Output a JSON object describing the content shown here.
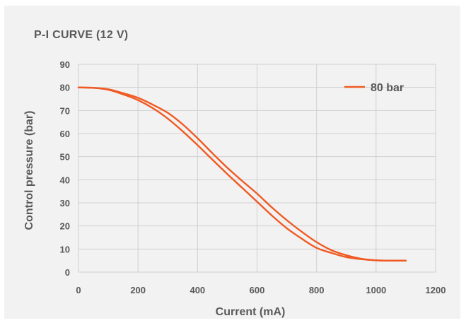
{
  "chart_data": {
    "type": "line",
    "title": "P-I CURVE (12 V)",
    "xlabel": "Current (mA)",
    "ylabel": "Control pressure (bar)",
    "xlim": [
      0,
      1200
    ],
    "ylim": [
      0,
      90
    ],
    "xticks": [
      0,
      200,
      400,
      600,
      800,
      1000,
      1200
    ],
    "yticks": [
      0,
      10,
      20,
      30,
      40,
      50,
      60,
      70,
      80,
      90
    ],
    "grid": true,
    "legend": "top-right",
    "series": [
      {
        "name": "80 bar",
        "color": "#f05a22",
        "x": [
          0,
          50,
          100,
          150,
          200,
          250,
          300,
          350,
          400,
          450,
          500,
          550,
          600,
          650,
          700,
          750,
          800,
          850,
          900,
          950,
          1000,
          1050,
          1100
        ],
        "y_up": [
          80,
          79.8,
          79,
          77,
          74.5,
          71,
          66.5,
          61,
          55,
          48.7,
          42.5,
          36.5,
          30.5,
          24.5,
          19,
          14.5,
          10.5,
          8.3,
          6.5,
          5.6,
          5.1,
          5,
          5
        ],
        "y_down": [
          80,
          79.8,
          79.2,
          77.5,
          75.5,
          72.5,
          69,
          64,
          58,
          51.5,
          45.2,
          39.5,
          34,
          28,
          22.5,
          17.5,
          13,
          9.5,
          7.3,
          5.8,
          5.1,
          5,
          5
        ]
      }
    ]
  }
}
